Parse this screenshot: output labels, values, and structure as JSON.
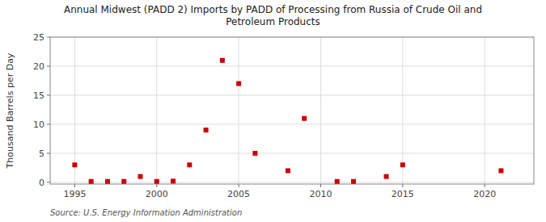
{
  "chart_data": {
    "type": "scatter",
    "title": "Annual Midwest (PADD 2) Imports by PADD of Processing from Russia of Crude Oil and\nPetroleum Products",
    "ylabel": "Thousand Barrels per Day",
    "source": "Source: U.S. Energy Information Administration",
    "x": [
      1995,
      1996,
      1997,
      1998,
      1999,
      2000,
      2001,
      2002,
      2003,
      2004,
      2005,
      2006,
      2008,
      2009,
      2011,
      2012,
      2014,
      2015,
      2021
    ],
    "values": [
      3.0,
      0.15,
      0.15,
      0.15,
      1.0,
      0.15,
      0.2,
      3.0,
      9.0,
      21.0,
      17.0,
      5.0,
      2.0,
      11.0,
      0.15,
      0.15,
      1.0,
      3.0,
      2.0
    ],
    "color": "#cc0000",
    "marker": "square",
    "xlim": [
      1993.5,
      2023
    ],
    "ylim": [
      -0.3,
      25
    ],
    "xticks": [
      1995,
      2000,
      2005,
      2010,
      2015,
      2020
    ],
    "yticks": [
      0,
      5,
      10,
      15,
      20,
      25
    ],
    "grid": true
  }
}
